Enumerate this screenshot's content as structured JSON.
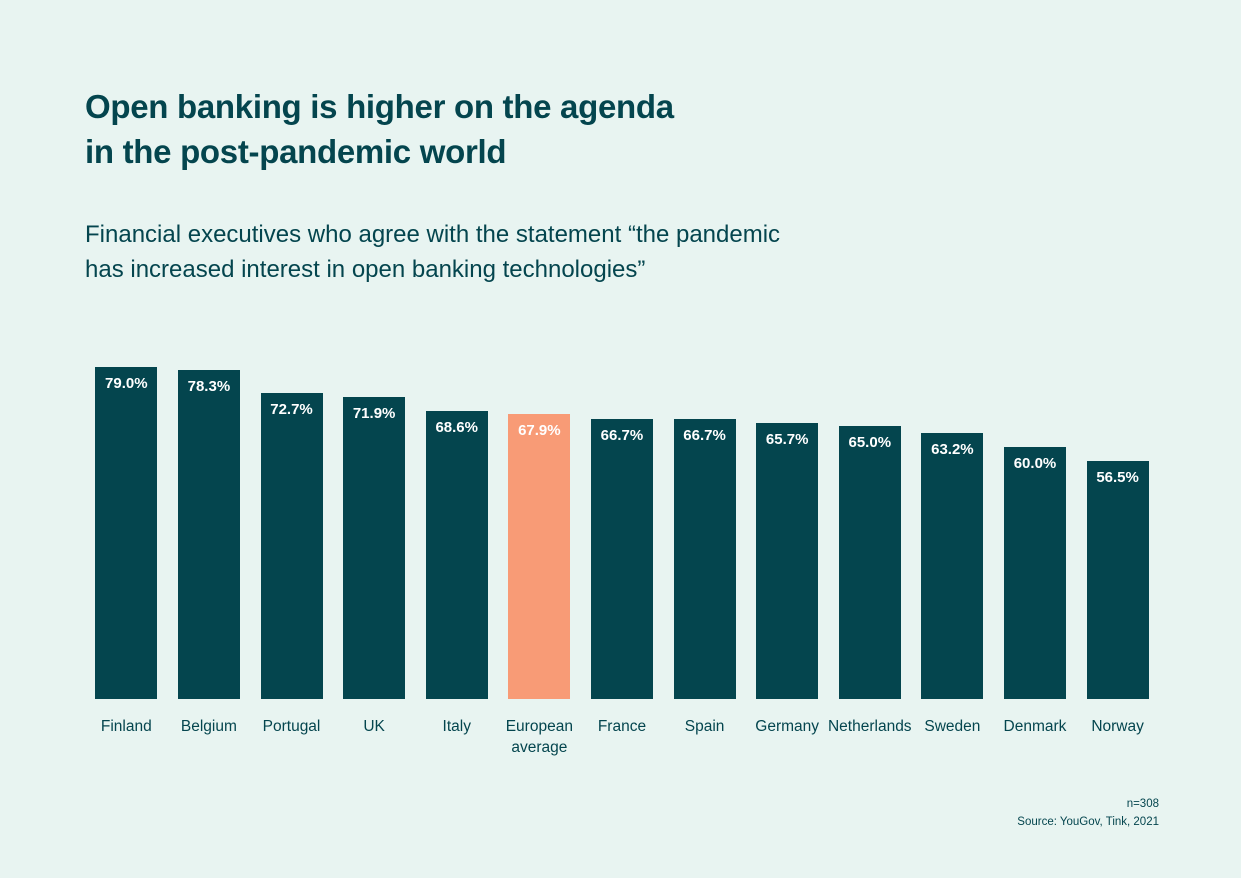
{
  "page": {
    "title": "Open banking is higher on the agenda\nin the post-pandemic world",
    "subtitle": "Financial executives who agree with the statement “the pandemic\nhas increased interest in open banking technologies”",
    "footer": {
      "sample_size": "n=308",
      "source": "Source: YouGov, Tink, 2021"
    }
  },
  "chart_data": {
    "type": "bar",
    "title": "Open banking is higher on the agenda in the post-pandemic world",
    "subtitle": "Financial executives who agree with the statement “the pandemic has increased interest in open banking technologies”",
    "categories": [
      "Finland",
      "Belgium",
      "Portugal",
      "UK",
      "Italy",
      "European average",
      "France",
      "Spain",
      "Germany",
      "Netherlands",
      "Sweden",
      "Denmark",
      "Norway"
    ],
    "values": [
      79.0,
      78.3,
      72.7,
      71.9,
      68.6,
      67.9,
      66.7,
      66.7,
      65.7,
      65.0,
      63.2,
      60.0,
      56.5
    ],
    "value_labels": [
      "79.0%",
      "78.3%",
      "72.7%",
      "71.9%",
      "68.6%",
      "67.9%",
      "66.7%",
      "66.7%",
      "65.7%",
      "65.0%",
      "63.2%",
      "60.0%",
      "56.5%"
    ],
    "highlight_index": 5,
    "highlight_category": "European average",
    "xlabel": "",
    "ylabel": "",
    "ylim": [
      0,
      79
    ],
    "grid": false,
    "legend": false,
    "value_labels_position": "inside-top",
    "colors": {
      "bar": "#04454e",
      "highlight": "#f89b76",
      "background": "#e8f4f1",
      "text": "#04454e",
      "value_label": "#ffffff"
    }
  }
}
